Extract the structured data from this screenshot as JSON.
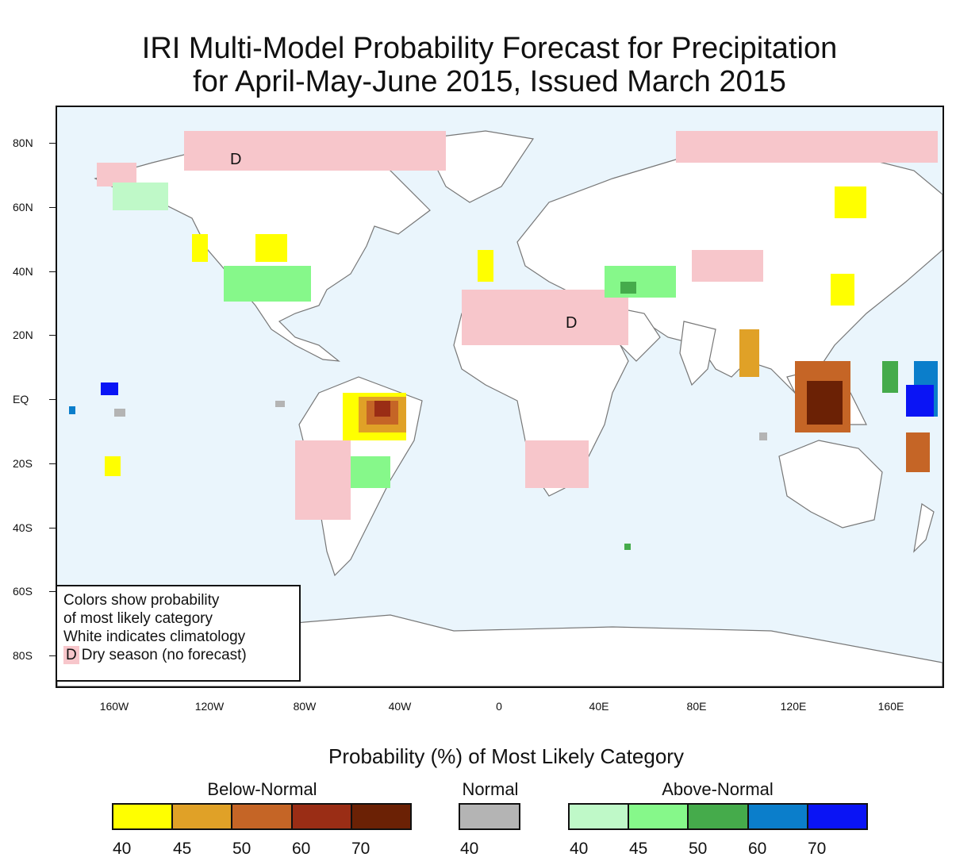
{
  "title": {
    "line1": "IRI Multi-Model Probability Forecast for Precipitation",
    "line2": "for April-May-June 2015, Issued March 2015"
  },
  "map": {
    "y_labels": [
      "80N",
      "60N",
      "40N",
      "20N",
      "EQ",
      "20S",
      "40S",
      "60S",
      "80S"
    ],
    "x_labels": [
      "160W",
      "120W",
      "80W",
      "40W",
      "0",
      "40E",
      "80E",
      "120E",
      "160E"
    ],
    "dry_marker": "D",
    "colors": {
      "ocean": "#eaf5fc",
      "land": "#ffffff",
      "coast": "#777777",
      "dry": "#f7c6cb"
    }
  },
  "key_box": {
    "line1": "Colors show probability",
    "line2": "of most likely category",
    "line3": "White indicates climatology",
    "dry_mark": "D",
    "line4": "Dry season (no forecast)"
  },
  "legend": {
    "title": "Probability (%) of Most Likely Category",
    "below": {
      "label": "Below-Normal",
      "colors": [
        "#ffff00",
        "#e0a127",
        "#c56526",
        "#9a2d15",
        "#6b2105"
      ],
      "ticks": [
        "40",
        "45",
        "50",
        "60",
        "70"
      ]
    },
    "normal": {
      "label": "Normal",
      "colors": [
        "#b4b4b4"
      ],
      "ticks": [
        "40"
      ]
    },
    "above": {
      "label": "Above-Normal",
      "colors": [
        "#bff9c8",
        "#86f88a",
        "#45ab4b",
        "#0b7ecb",
        "#0a14f5"
      ],
      "ticks": [
        "40",
        "45",
        "50",
        "60",
        "70"
      ]
    }
  }
}
